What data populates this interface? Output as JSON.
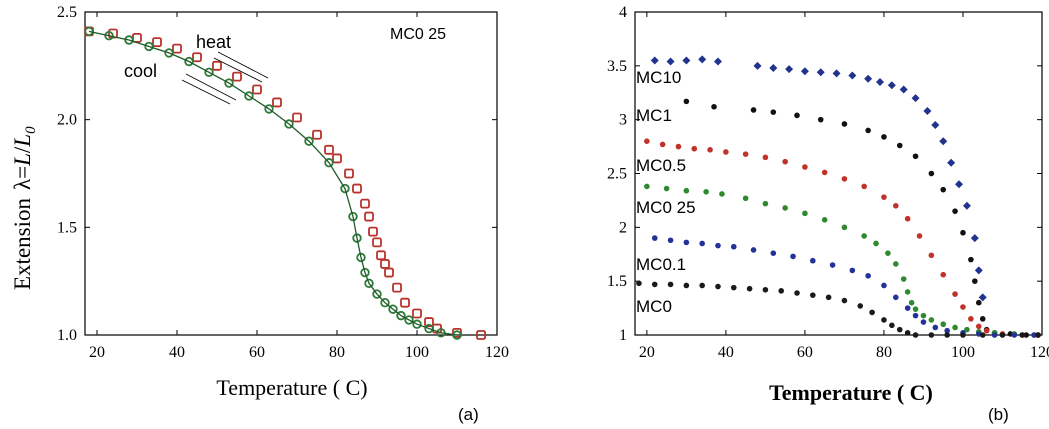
{
  "figure": {
    "panel_a_label": "(a)",
    "panel_b_label": "(b)"
  },
  "colors": {
    "heat": "#b8332b",
    "cool": "#2e7a3a",
    "MC0": "#1a1a1a",
    "MC0.1": "#23329a",
    "MC0 25": "#2f8a2f",
    "MC0.5": "#c0322a",
    "MC1": "#111111",
    "MC10": "#22338f"
  },
  "chart_data": [
    {
      "type": "scatter",
      "panel": "a",
      "xlabel": "Temperature ( C)",
      "ylabel_prefix": "Extension",
      "ylabel_symbol": "λ=",
      "ylabel_formula_L": "L",
      "ylabel_formula_slash": "/",
      "ylabel_formula_L0": "L",
      "ylabel_formula_sub": "0",
      "xlim": [
        17,
        120
      ],
      "ylim": [
        1.0,
        2.5
      ],
      "x_ticks": [
        20,
        40,
        60,
        80,
        100,
        120
      ],
      "x_tick_labels": [
        "20",
        "40",
        "60",
        "80",
        "100",
        "120"
      ],
      "y_ticks": [
        1.0,
        1.5,
        2.0,
        2.5
      ],
      "y_tick_labels": [
        "1.0",
        "1.5",
        "2.0",
        "2.5"
      ],
      "annotation": "MC0 25",
      "series_labels": {
        "heat": "heat",
        "cool": "cool"
      },
      "series": [
        {
          "name": "heat",
          "color_key": "heat",
          "x": [
            18,
            24,
            30,
            35,
            40,
            45,
            50,
            55,
            60,
            65,
            70,
            75,
            78,
            80,
            83,
            85,
            87,
            88,
            89,
            90,
            91,
            92,
            93,
            95,
            97,
            100,
            103,
            105,
            110,
            116
          ],
          "y": [
            2.41,
            2.4,
            2.38,
            2.36,
            2.33,
            2.29,
            2.25,
            2.2,
            2.14,
            2.08,
            2.01,
            1.93,
            1.86,
            1.82,
            1.75,
            1.68,
            1.61,
            1.55,
            1.48,
            1.43,
            1.37,
            1.33,
            1.29,
            1.22,
            1.15,
            1.1,
            1.06,
            1.03,
            1.01,
            1.0
          ]
        },
        {
          "name": "cool",
          "color_key": "cool",
          "x": [
            18,
            23,
            28,
            33,
            38,
            43,
            48,
            53,
            58,
            63,
            68,
            73,
            78,
            82,
            84,
            85,
            86,
            87,
            88,
            90,
            92,
            94,
            96,
            98,
            100,
            103,
            106,
            110
          ],
          "y": [
            2.41,
            2.39,
            2.37,
            2.34,
            2.31,
            2.27,
            2.22,
            2.17,
            2.11,
            2.05,
            1.98,
            1.9,
            1.8,
            1.68,
            1.55,
            1.45,
            1.36,
            1.29,
            1.24,
            1.19,
            1.15,
            1.12,
            1.09,
            1.07,
            1.05,
            1.03,
            1.01,
            1.0
          ]
        }
      ]
    },
    {
      "type": "scatter",
      "panel": "b",
      "xlabel": "Temperature ( C)",
      "xlim": [
        17,
        120
      ],
      "ylim": [
        1,
        4
      ],
      "x_ticks": [
        20,
        40,
        60,
        80,
        100,
        120
      ],
      "x_tick_labels": [
        "20",
        "40",
        "60",
        "80",
        "100",
        "120"
      ],
      "y_ticks": [
        1,
        1.5,
        2,
        2.5,
        3,
        3.5,
        4
      ],
      "y_tick_labels": [
        "1",
        "1.5",
        "2",
        "2.5",
        "3",
        "3.5",
        "4"
      ],
      "series": [
        {
          "name": "MC10",
          "color_key": "MC10",
          "x": [
            22,
            26,
            30,
            34,
            38,
            48,
            52,
            56,
            60,
            64,
            68,
            72,
            76,
            79,
            82,
            85,
            88,
            91,
            93,
            95,
            97,
            99,
            101,
            103,
            104,
            105
          ],
          "y": [
            3.55,
            3.54,
            3.55,
            3.56,
            3.54,
            3.5,
            3.48,
            3.47,
            3.45,
            3.44,
            3.43,
            3.41,
            3.38,
            3.35,
            3.32,
            3.28,
            3.2,
            3.08,
            2.95,
            2.8,
            2.6,
            2.4,
            2.2,
            1.9,
            1.6,
            1.35
          ]
        },
        {
          "name": "MC1",
          "color_key": "MC1",
          "x": [
            30,
            37,
            47,
            52,
            58,
            64,
            70,
            76,
            80,
            84,
            88,
            92,
            95,
            98,
            100,
            102,
            103,
            104,
            105,
            106,
            108,
            112,
            116,
            119
          ],
          "y": [
            3.17,
            3.12,
            3.09,
            3.07,
            3.04,
            3.0,
            2.96,
            2.9,
            2.84,
            2.76,
            2.66,
            2.5,
            2.35,
            2.15,
            1.95,
            1.7,
            1.5,
            1.3,
            1.15,
            1.05,
            1.02,
            1.01,
            1.0,
            1.0
          ]
        },
        {
          "name": "MC0.5",
          "color_key": "MC0.5",
          "x": [
            20,
            24,
            28,
            32,
            36,
            40,
            45,
            50,
            55,
            60,
            65,
            70,
            75,
            80,
            83,
            86,
            89,
            92,
            95,
            98,
            100,
            102,
            104,
            106,
            110,
            115,
            119
          ],
          "y": [
            2.8,
            2.77,
            2.75,
            2.73,
            2.72,
            2.7,
            2.68,
            2.65,
            2.61,
            2.56,
            2.51,
            2.45,
            2.38,
            2.28,
            2.2,
            2.08,
            1.92,
            1.74,
            1.56,
            1.38,
            1.26,
            1.15,
            1.08,
            1.04,
            1.01,
            1.0,
            1.0
          ]
        },
        {
          "name": "MC0 25",
          "color_key": "MC0 25",
          "x": [
            20,
            25,
            30,
            35,
            39,
            45,
            50,
            55,
            60,
            65,
            70,
            75,
            78,
            81,
            83,
            85,
            86,
            87,
            88,
            90,
            92,
            95,
            98,
            101,
            104,
            108,
            113,
            118
          ],
          "y": [
            2.38,
            2.36,
            2.34,
            2.33,
            2.31,
            2.27,
            2.22,
            2.18,
            2.13,
            2.07,
            2.0,
            1.92,
            1.85,
            1.76,
            1.66,
            1.52,
            1.4,
            1.3,
            1.24,
            1.18,
            1.14,
            1.1,
            1.07,
            1.05,
            1.03,
            1.02,
            1.01,
            1.0
          ]
        },
        {
          "name": "MC0.1",
          "color_key": "MC0.1",
          "x": [
            22,
            26,
            30,
            34,
            38,
            42,
            47,
            52,
            57,
            62,
            67,
            72,
            76,
            80,
            83,
            86,
            88,
            90,
            93,
            96,
            100,
            104,
            108,
            113,
            118
          ],
          "y": [
            1.9,
            1.88,
            1.86,
            1.85,
            1.83,
            1.82,
            1.79,
            1.76,
            1.73,
            1.69,
            1.65,
            1.6,
            1.55,
            1.46,
            1.35,
            1.25,
            1.18,
            1.12,
            1.07,
            1.04,
            1.02,
            1.01,
            1.0,
            1.0,
            1.0
          ]
        },
        {
          "name": "MC0",
          "color_key": "MC0",
          "x": [
            18,
            22,
            26,
            30,
            34,
            38,
            42,
            46,
            50,
            54,
            58,
            62,
            66,
            70,
            74,
            77,
            80,
            82,
            84,
            86,
            88,
            92,
            96,
            100,
            105,
            110,
            115,
            119
          ],
          "y": [
            1.48,
            1.47,
            1.47,
            1.46,
            1.46,
            1.45,
            1.44,
            1.43,
            1.42,
            1.41,
            1.39,
            1.37,
            1.35,
            1.32,
            1.27,
            1.21,
            1.14,
            1.09,
            1.05,
            1.02,
            1.0,
            1.0,
            1.0,
            1.0,
            1.0,
            1.0,
            1.0,
            1.0
          ]
        }
      ]
    }
  ]
}
